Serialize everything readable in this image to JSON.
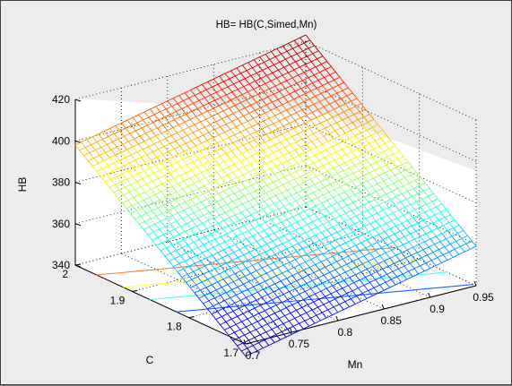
{
  "chart_data": {
    "type": "surface",
    "title": "HB= HB(C,Simed,Mn)",
    "xlabel": "Mn",
    "ylabel": "C",
    "zlabel": "HB",
    "xlim": [
      0.7,
      0.95
    ],
    "ylim": [
      1.7,
      2.0
    ],
    "zlim": [
      340,
      420
    ],
    "xticks": [
      "0.7",
      "0.75",
      "0.8",
      "0.85",
      "0.9",
      "0.95"
    ],
    "yticks": [
      "1.7",
      "1.8",
      "1.9",
      "2"
    ],
    "zticks": [
      "340",
      "360",
      "380",
      "400",
      "420"
    ],
    "grid": true,
    "colormap": "jet",
    "surface": {
      "corners": [
        {
          "Mn": 0.7,
          "C": 2.0,
          "HB": 398
        },
        {
          "Mn": 0.95,
          "C": 2.0,
          "HB": 423
        },
        {
          "Mn": 0.7,
          "C": 1.7,
          "HB": 334
        },
        {
          "Mn": 0.95,
          "C": 1.7,
          "HB": 359
        }
      ],
      "mesh_lines": 40
    },
    "contour_levels": [
      390,
      380,
      370,
      360
    ],
    "contour_colors": [
      "#ff7f3f",
      "#ffff40",
      "#40ffff",
      "#2060ff"
    ]
  }
}
